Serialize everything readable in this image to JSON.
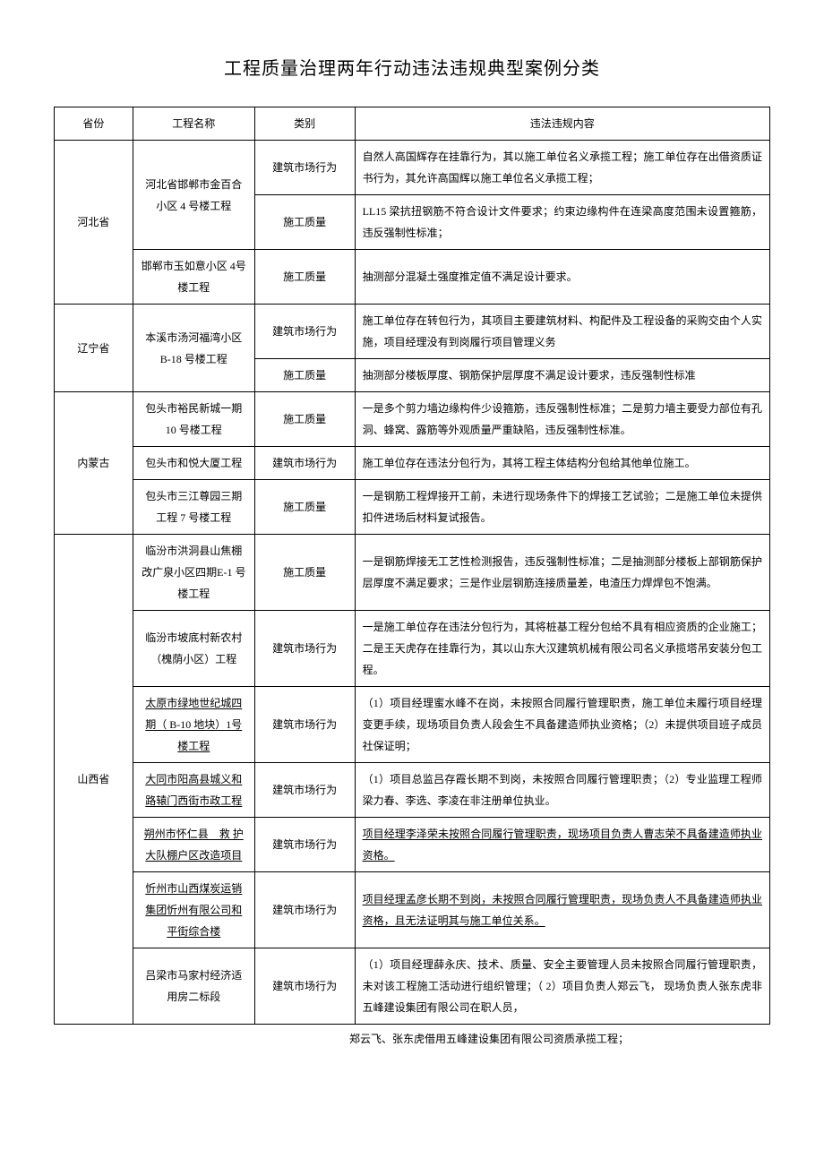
{
  "title": "工程质量治理两年行动违法违规典型案例分类",
  "headers": {
    "province": "省份",
    "project": "工程名称",
    "category": "类别",
    "content": "违法违规内容"
  },
  "rows": [
    {
      "province": "河北省",
      "province_rowspan": 3,
      "project": "河北省邯郸市金百合小区 4 号楼工程",
      "project_rowspan": 2,
      "category": "建筑市场行为",
      "content": "自然人高国辉存在挂靠行为，其以施工单位名义承揽工程；施工单位存在出借资质证书行为，其允许高国辉以施工单位名义承揽工程；"
    },
    {
      "category": "施工质量",
      "content": "LL15 梁抗扭钢筋不符合设计文件要求；约束边缘构件在连梁高度范围未设置箍筋，违反强制性标准；"
    },
    {
      "project": "邯郸市玉如意小区 4号楼工程",
      "project_rowspan": 1,
      "category": "施工质量",
      "content": "抽测部分混凝土强度推定值不满足设计要求。"
    },
    {
      "province": "辽宁省",
      "province_rowspan": 2,
      "project": "本溪市汤河福湾小区 B-18 号楼工程",
      "project_rowspan": 2,
      "category": "建筑市场行为",
      "content": "施工单位存在转包行为，其项目主要建筑材料、构配件及工程设备的采购交由个人实施，项目经理没有到岗履行项目管理义务"
    },
    {
      "category": "施工质量",
      "content": "抽测部分楼板厚度、钢筋保护层厚度不满足设计要求，违反强制性标准"
    },
    {
      "province": "内蒙古",
      "province_rowspan": 3,
      "project": "包头市裕民新城一期 10 号楼工程",
      "project_rowspan": 1,
      "category": "施工质量",
      "content": "一是多个剪力墙边缘构件少设箍筋，违反强制性标准；二是剪力墙主要受力部位有孔洞、蜂窝、露筋等外观质量严重缺陷，违反强制性标准。"
    },
    {
      "project": "包头市和悦大厦工程",
      "project_rowspan": 1,
      "category": "建筑市场行为",
      "content": "施工单位存在违法分包行为，其将工程主体结构分包给其他单位施工。"
    },
    {
      "project": "包头市三江尊园三期工程 7 号楼工程",
      "project_rowspan": 1,
      "category": "施工质量",
      "content": "一是钢筋工程焊接开工前，未进行现场条件下的焊接工艺试验；二是施工单位未提供扣件进场后材料复试报告。"
    },
    {
      "province": "山西省",
      "province_rowspan": 7,
      "project": "临汾市洪洞县山焦棚改广泉小区四期E-1 号楼工程",
      "project_rowspan": 1,
      "category": "施工质量",
      "content": "一是钢筋焊接无工艺性检测报告，违反强制性标准；二是抽测部分楼板上部钢筋保护层厚度不满足要求；三是作业层钢筋连接质量差，电渣压力焊焊包不饱满。"
    },
    {
      "project": "临汾市坡底村新农村（槐荫小区）工程",
      "project_rowspan": 1,
      "category": "建筑市场行为",
      "content": "一是施工单位存在违法分包行为，其将桩基工程分包给不具有相应资质的企业施工；二是王天虎存在挂靠行为，其以山东大汉建筑机械有限公司名义承揽塔吊安装分包工程。"
    },
    {
      "project": "太原市绿地世纪城四期（ B-10 地块）1号楼工程",
      "project_rowspan": 1,
      "project_underline": true,
      "category": "建筑市场行为",
      "content": "（1）项目经理蜜水峰不在岗，未按照合同履行管理职责，施工单位未履行项目经理变更手续，现场项目负责人段会生不具备建造师执业资格；（2）未提供项目班子成员社保证明；"
    },
    {
      "project": "大同市阳高县城义和路辕门西街市政工程",
      "project_rowspan": 1,
      "project_underline": true,
      "category": "建筑市场行为",
      "content": "（1）项目总监吕存霞长期不到岗，未按照合同履行管理职责；（2）专业监理工程师梁力春、李选、李凌在非注册单位执业。"
    },
    {
      "project": "朔州市怀仁县　救 护大队棚户区改造项目",
      "project_rowspan": 1,
      "project_underline": true,
      "category": "建筑市场行为",
      "content": "项目经理李泽荣未按照合同履行管理职责，现场项目负责人曹志荣不具备建造师执业资格。",
      "content_underline": true
    },
    {
      "project": "忻州市山西煤炭运销集团忻州有限公司和平街综合楼",
      "project_rowspan": 1,
      "project_underline": true,
      "category": "建筑市场行为",
      "content": "项目经理孟彦长期不到岗，未按照合同履行管理职责，现场负责人不具备建造师执业资格，且无法证明其与施工单位关系。",
      "content_underline": true
    },
    {
      "project": "吕梁市马家村经济适用房二标段",
      "project_rowspan": 1,
      "category": "建筑市场行为",
      "content": "（1）项目经理薛永庆、技术、质量、安全主要管理人员未按照合同履行管理职责，未对该工程施工活动进行组织管理；（ 2）项目负责人郑云飞， 现场负责人张东虎非五峰建设集团有限公司在职人员，"
    }
  ],
  "footer_note": "郑云飞、张东虎借用五峰建设集团有限公司资质承揽工程；"
}
